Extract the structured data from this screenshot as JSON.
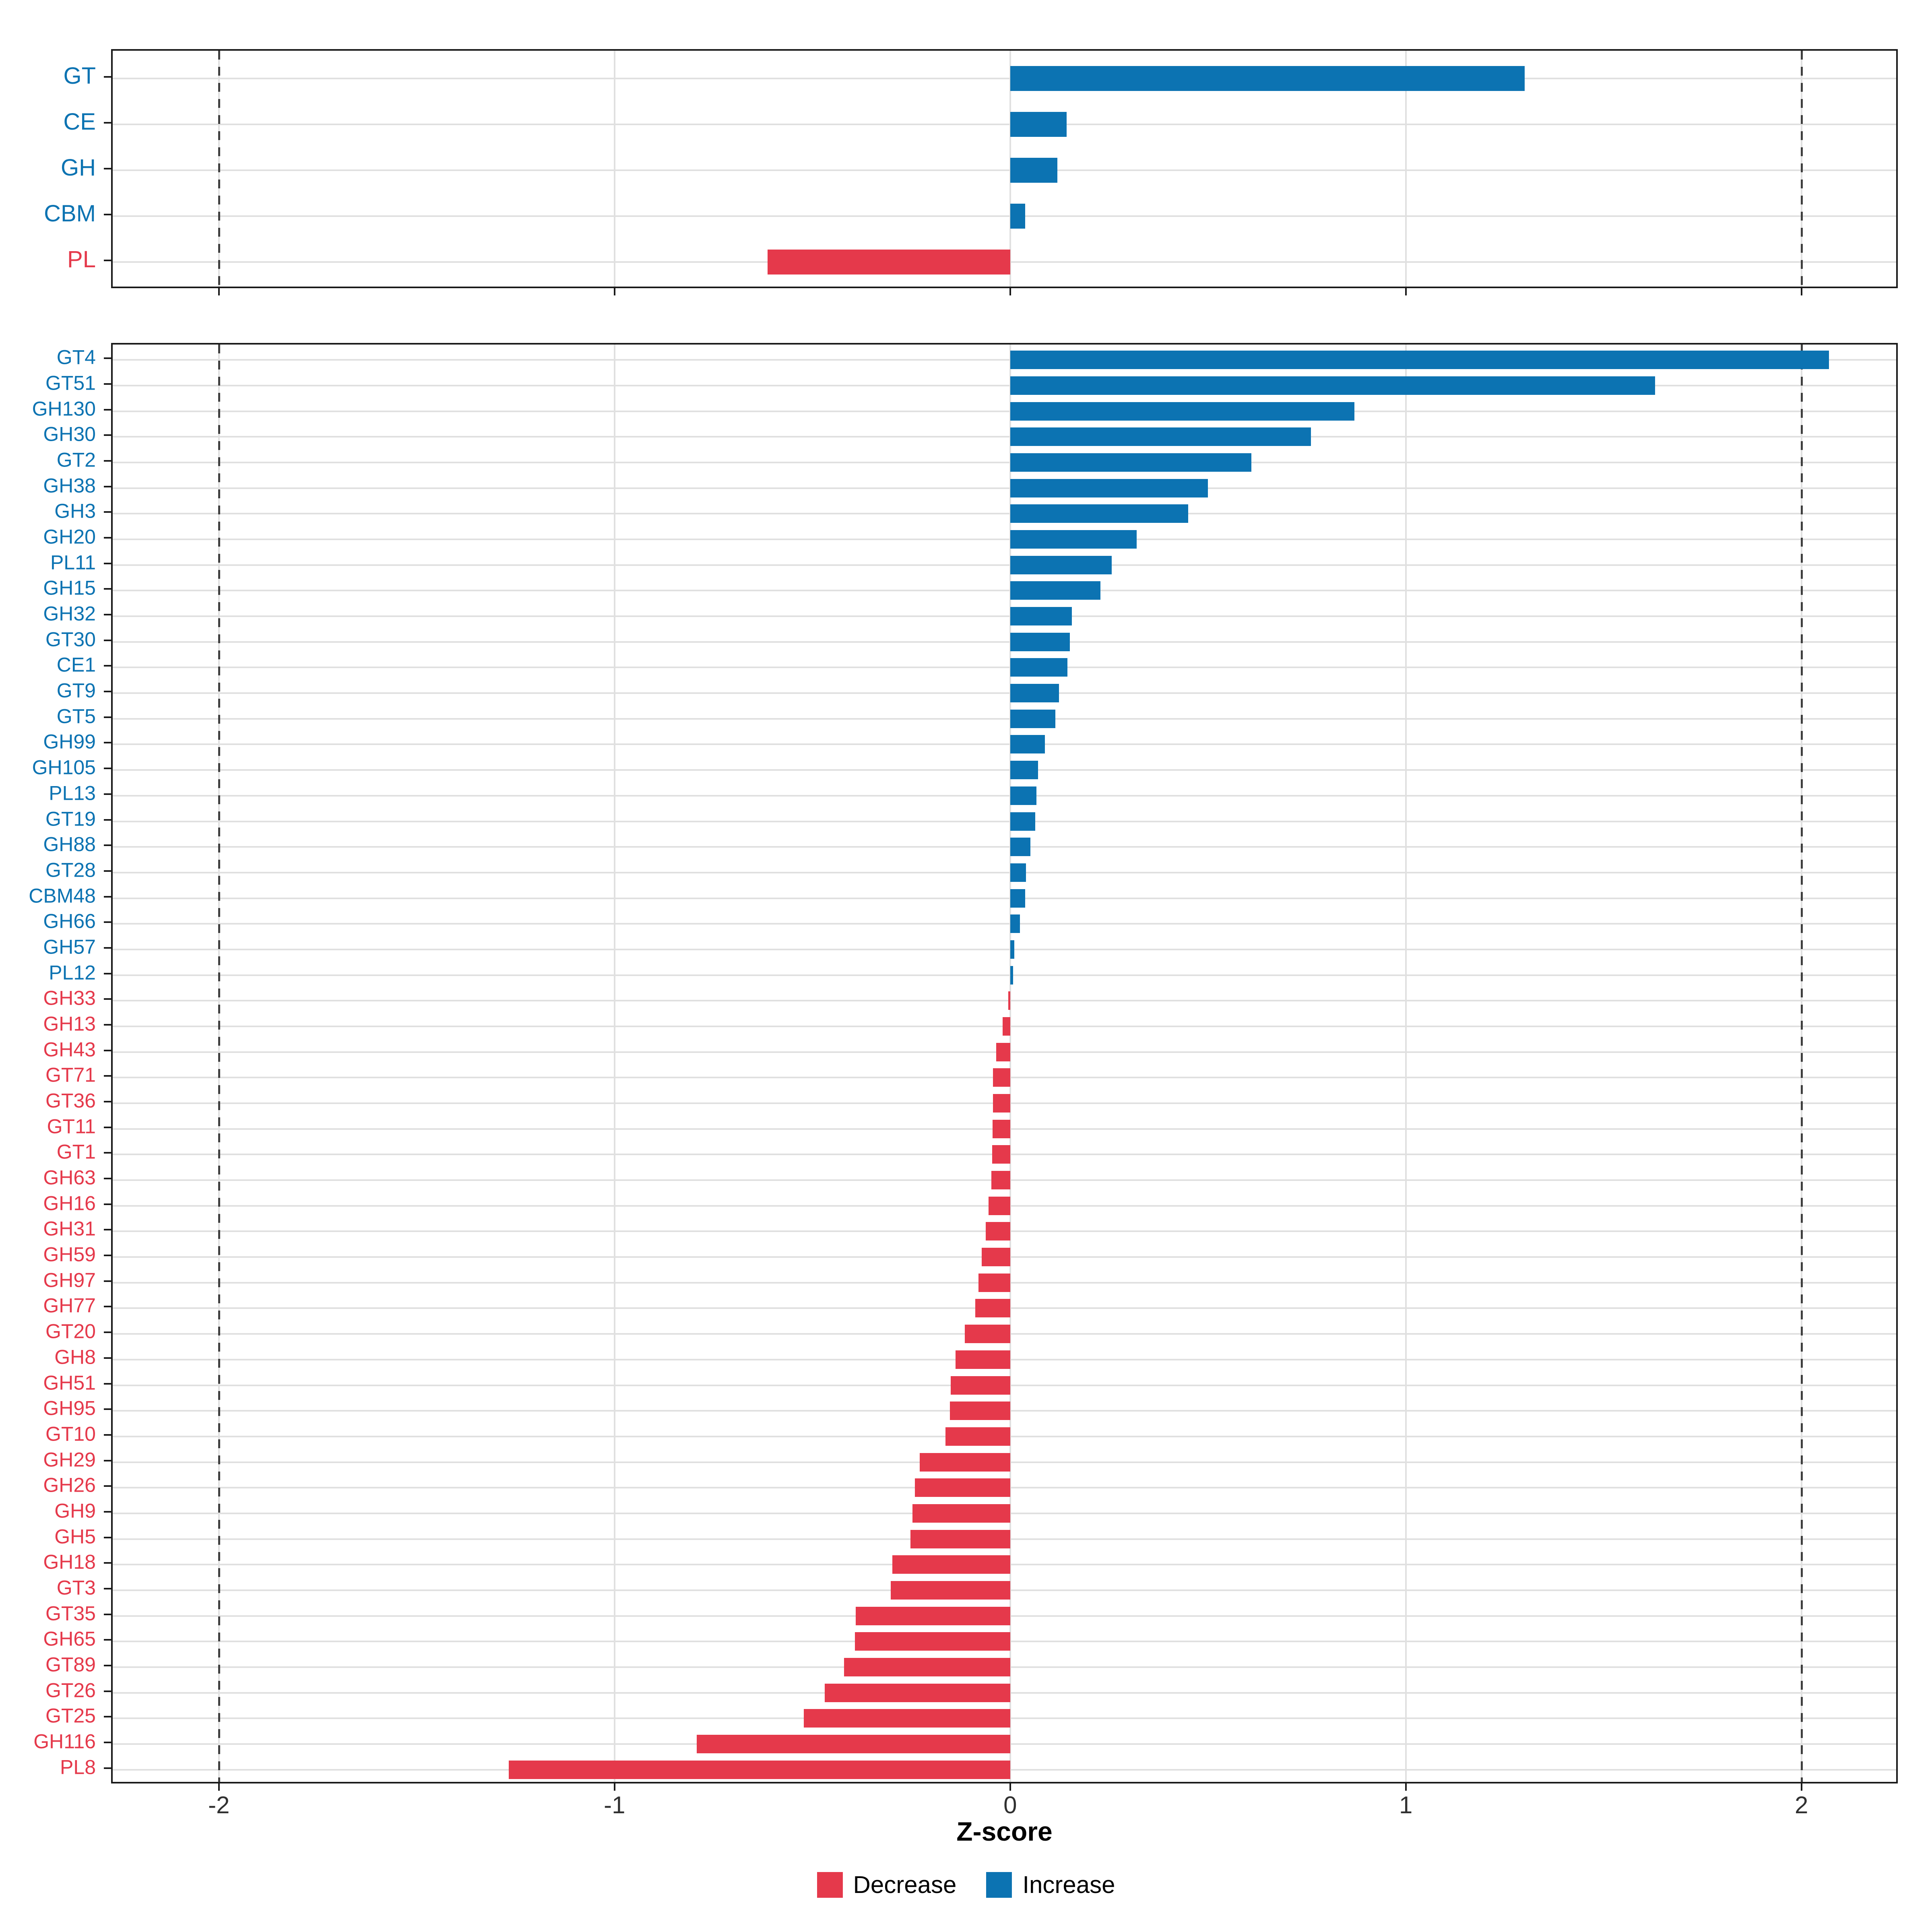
{
  "figure": {
    "background": "#ffffff"
  },
  "colors": {
    "increase": "#0C73B2",
    "decrease": "#E5394B",
    "grid": "#E0E0E0",
    "dash": "#3F3F3F",
    "frame": "#1A1A1A",
    "tick_text": "#303030"
  },
  "axis": {
    "label": "Z-score",
    "tick_labels": [
      "-2",
      "-1",
      "0",
      "1",
      "2"
    ],
    "tick_values": [
      -2,
      -1,
      0,
      1,
      2
    ],
    "domain": [
      -2.2725,
      2.2435
    ],
    "reference_lines": [
      -2,
      2
    ]
  },
  "legend": {
    "items": [
      {
        "label": "Decrease",
        "key": "decrease"
      },
      {
        "label": "Increase",
        "key": "increase"
      }
    ]
  },
  "chart_data": [
    {
      "type": "bar",
      "panel": "summary",
      "orientation": "horizontal",
      "title": "",
      "xlabel": "Z-score",
      "ylabel": "",
      "xlim": [
        -2.2725,
        2.2435
      ],
      "grid": true,
      "categories": [
        "GT",
        "CE",
        "GH",
        "CBM",
        "PL"
      ],
      "values": [
        1.3,
        0.143,
        0.119,
        0.038,
        -0.613
      ],
      "directions": [
        "Increase",
        "Increase",
        "Increase",
        "Increase",
        "Decrease"
      ]
    },
    {
      "type": "bar",
      "panel": "families",
      "orientation": "horizontal",
      "title": "",
      "xlabel": "Z-score",
      "ylabel": "",
      "xlim": [
        -2.2725,
        2.2435
      ],
      "grid": true,
      "categories": [
        "GT4",
        "GT51",
        "GH130",
        "GH30",
        "GT2",
        "GH38",
        "GH3",
        "GH20",
        "PL11",
        "GH15",
        "GH32",
        "GT30",
        "CE1",
        "GT9",
        "GT5",
        "GH99",
        "GH105",
        "PL13",
        "GT19",
        "GH88",
        "GT28",
        "CBM48",
        "GH66",
        "GH57",
        "PL12",
        "GH33",
        "GH13",
        "GH43",
        "GT71",
        "GT36",
        "GT11",
        "GT1",
        "GH63",
        "GH16",
        "GH31",
        "GH59",
        "GH97",
        "GH77",
        "GT20",
        "GH8",
        "GH51",
        "GH95",
        "GT10",
        "GH29",
        "GH26",
        "GH9",
        "GH5",
        "GH18",
        "GT3",
        "GT35",
        "GH65",
        "GT89",
        "GT26",
        "GT25",
        "GH116",
        "PL8"
      ],
      "values": [
        2.07,
        1.63,
        0.87,
        0.76,
        0.61,
        0.5,
        0.45,
        0.32,
        0.257,
        0.228,
        0.156,
        0.151,
        0.145,
        0.123,
        0.114,
        0.088,
        0.07,
        0.066,
        0.063,
        0.051,
        0.04,
        0.038,
        0.025,
        0.01,
        0.007,
        -0.005,
        -0.019,
        -0.035,
        -0.043,
        -0.044,
        -0.045,
        -0.046,
        -0.048,
        -0.055,
        -0.062,
        -0.072,
        -0.08,
        -0.088,
        -0.115,
        -0.138,
        -0.15,
        -0.152,
        -0.164,
        -0.229,
        -0.241,
        -0.247,
        -0.252,
        -0.298,
        -0.302,
        -0.39,
        -0.392,
        -0.42,
        -0.469,
        -0.522,
        -0.792,
        -1.267
      ],
      "directions": [
        "Increase",
        "Increase",
        "Increase",
        "Increase",
        "Increase",
        "Increase",
        "Increase",
        "Increase",
        "Increase",
        "Increase",
        "Increase",
        "Increase",
        "Increase",
        "Increase",
        "Increase",
        "Increase",
        "Increase",
        "Increase",
        "Increase",
        "Increase",
        "Increase",
        "Increase",
        "Increase",
        "Increase",
        "Increase",
        "Decrease",
        "Decrease",
        "Decrease",
        "Decrease",
        "Decrease",
        "Decrease",
        "Decrease",
        "Decrease",
        "Decrease",
        "Decrease",
        "Decrease",
        "Decrease",
        "Decrease",
        "Decrease",
        "Decrease",
        "Decrease",
        "Decrease",
        "Decrease",
        "Decrease",
        "Decrease",
        "Decrease",
        "Decrease",
        "Decrease",
        "Decrease",
        "Decrease",
        "Decrease",
        "Decrease",
        "Decrease",
        "Decrease",
        "Decrease",
        "Decrease"
      ]
    }
  ]
}
